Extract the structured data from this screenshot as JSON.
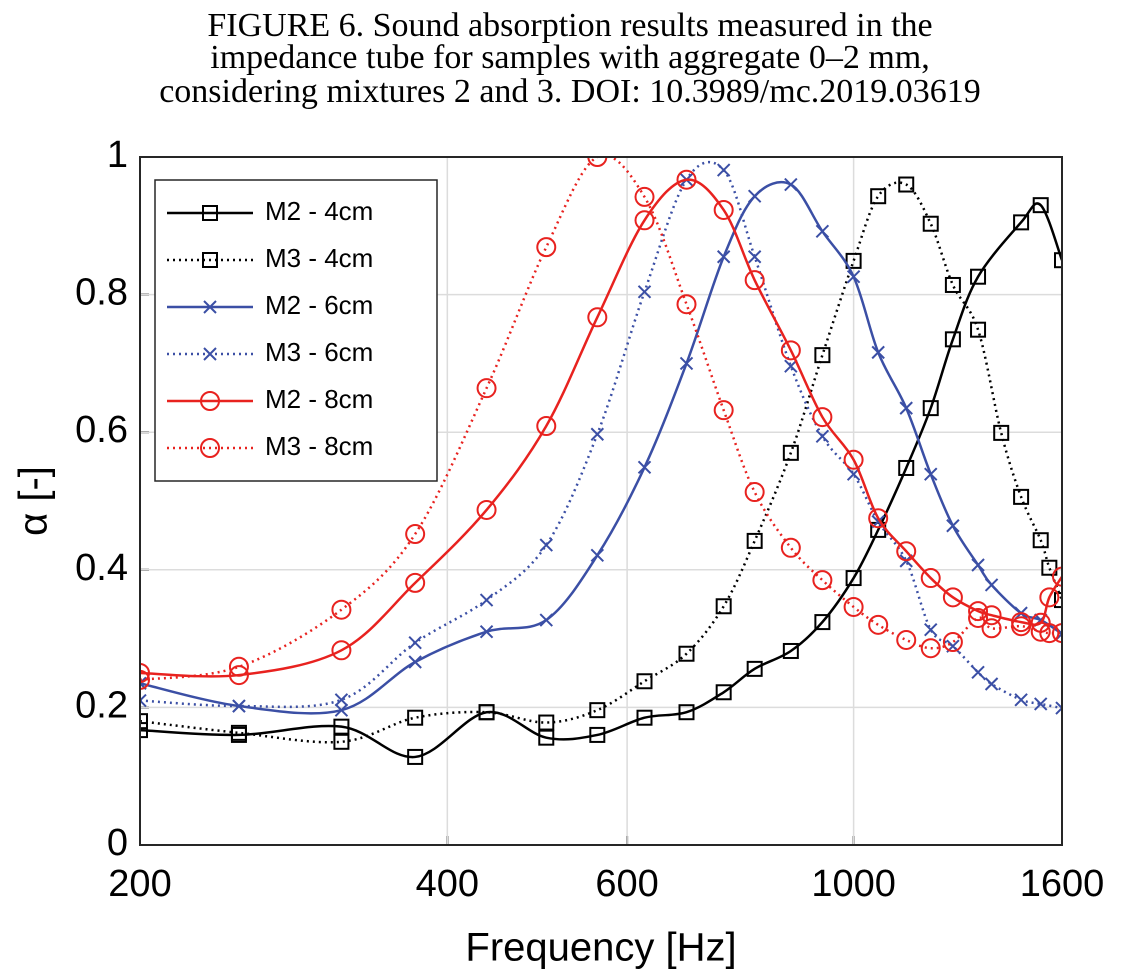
{
  "chart_data": {
    "type": "line",
    "title": [
      "FIGURE 6. Sound absorption results measured in the",
      "impedance tube for samples with aggregate 0–2 mm,",
      "considering mixtures 2 and 3.  DOI: 10.3989/mc.2019.03619"
    ],
    "xlabel": "Frequency [Hz]",
    "ylabel": "α [-]",
    "xscale": "log",
    "xlim": [
      200,
      1600
    ],
    "xticks": [
      200,
      400,
      600,
      1000,
      1600
    ],
    "ylim": [
      0,
      1
    ],
    "yticks": [
      0,
      0.2,
      0.4,
      0.6,
      0.8,
      1
    ],
    "grid": true,
    "legend": "upper left",
    "series": [
      {
        "name": "M2 - 4cm",
        "color": "#000000",
        "linestyle": "solid",
        "marker": "square",
        "x": [
          200,
          250,
          315,
          372,
          437,
          500,
          561,
          624,
          686,
          746,
          800,
          868,
          932,
          1000,
          1057,
          1126,
          1190,
          1251,
          1324,
          1459,
          1525,
          1600
        ],
        "values": [
          0.167,
          0.16,
          0.172,
          0.128,
          0.193,
          0.156,
          0.16,
          0.185,
          0.193,
          0.222,
          0.256,
          0.282,
          0.324,
          0.388,
          0.458,
          0.548,
          0.635,
          0.735,
          0.826,
          0.905,
          0.93,
          0.85
        ]
      },
      {
        "name": "M3 - 4cm",
        "color": "#000000",
        "linestyle": "dotted",
        "marker": "square",
        "x": [
          200,
          250,
          315,
          372,
          437,
          500,
          561,
          624,
          686,
          746,
          800,
          868,
          932,
          1000,
          1057,
          1126,
          1190,
          1251,
          1324,
          1395,
          1459,
          1525,
          1555,
          1600
        ],
        "values": [
          0.18,
          0.163,
          0.15,
          0.185,
          0.193,
          0.178,
          0.196,
          0.238,
          0.278,
          0.347,
          0.442,
          0.57,
          0.712,
          0.849,
          0.943,
          0.96,
          0.903,
          0.814,
          0.749,
          0.599,
          0.506,
          0.443,
          0.403,
          0.356
        ]
      },
      {
        "name": "M2 - 6cm",
        "color": "#3b4fa5",
        "linestyle": "solid",
        "marker": "x",
        "x": [
          200,
          250,
          315,
          372,
          437,
          500,
          561,
          624,
          686,
          746,
          800,
          868,
          932,
          1000,
          1057,
          1126,
          1190,
          1251,
          1324,
          1365,
          1459,
          1525,
          1600
        ],
        "values": [
          0.235,
          0.202,
          0.196,
          0.266,
          0.31,
          0.327,
          0.421,
          0.549,
          0.7,
          0.855,
          0.943,
          0.96,
          0.892,
          0.826,
          0.716,
          0.635,
          0.539,
          0.464,
          0.407,
          0.378,
          0.337,
          0.327,
          0.307
        ]
      },
      {
        "name": "M3 - 6cm",
        "color": "#3b4fa5",
        "linestyle": "dotted",
        "marker": "x",
        "x": [
          200,
          250,
          315,
          372,
          437,
          500,
          561,
          624,
          686,
          746,
          800,
          868,
          932,
          1000,
          1057,
          1126,
          1190,
          1251,
          1324,
          1365,
          1459,
          1525,
          1600
        ],
        "values": [
          0.21,
          0.202,
          0.211,
          0.294,
          0.356,
          0.436,
          0.597,
          0.804,
          0.967,
          0.981,
          0.855,
          0.696,
          0.594,
          0.539,
          0.47,
          0.413,
          0.313,
          0.289,
          0.251,
          0.234,
          0.211,
          0.205,
          0.199
        ]
      },
      {
        "name": "M2 - 8cm",
        "color": "#e8221f",
        "linestyle": "solid",
        "marker": "circle",
        "x": [
          200,
          250,
          315,
          372,
          437,
          500,
          561,
          624,
          686,
          746,
          800,
          868,
          932,
          1000,
          1057,
          1126,
          1190,
          1251,
          1324,
          1365,
          1459,
          1525,
          1555,
          1600
        ],
        "values": [
          0.25,
          0.247,
          0.283,
          0.381,
          0.487,
          0.609,
          0.767,
          0.908,
          0.967,
          0.923,
          0.821,
          0.719,
          0.622,
          0.56,
          0.475,
          0.427,
          0.388,
          0.36,
          0.34,
          0.334,
          0.324,
          0.323,
          0.36,
          0.39
        ]
      },
      {
        "name": "M3 - 8cm",
        "color": "#e8221f",
        "linestyle": "dotted",
        "marker": "circle",
        "x": [
          200,
          250,
          315,
          372,
          437,
          500,
          561,
          624,
          686,
          746,
          800,
          868,
          932,
          1000,
          1057,
          1126,
          1190,
          1251,
          1324,
          1365,
          1459,
          1525,
          1555,
          1600
        ],
        "values": [
          0.24,
          0.259,
          0.342,
          0.452,
          0.664,
          0.869,
          1.0,
          0.942,
          0.786,
          0.632,
          0.513,
          0.432,
          0.385,
          0.346,
          0.32,
          0.298,
          0.286,
          0.295,
          0.33,
          0.315,
          0.318,
          0.31,
          0.308,
          0.308
        ]
      }
    ]
  }
}
